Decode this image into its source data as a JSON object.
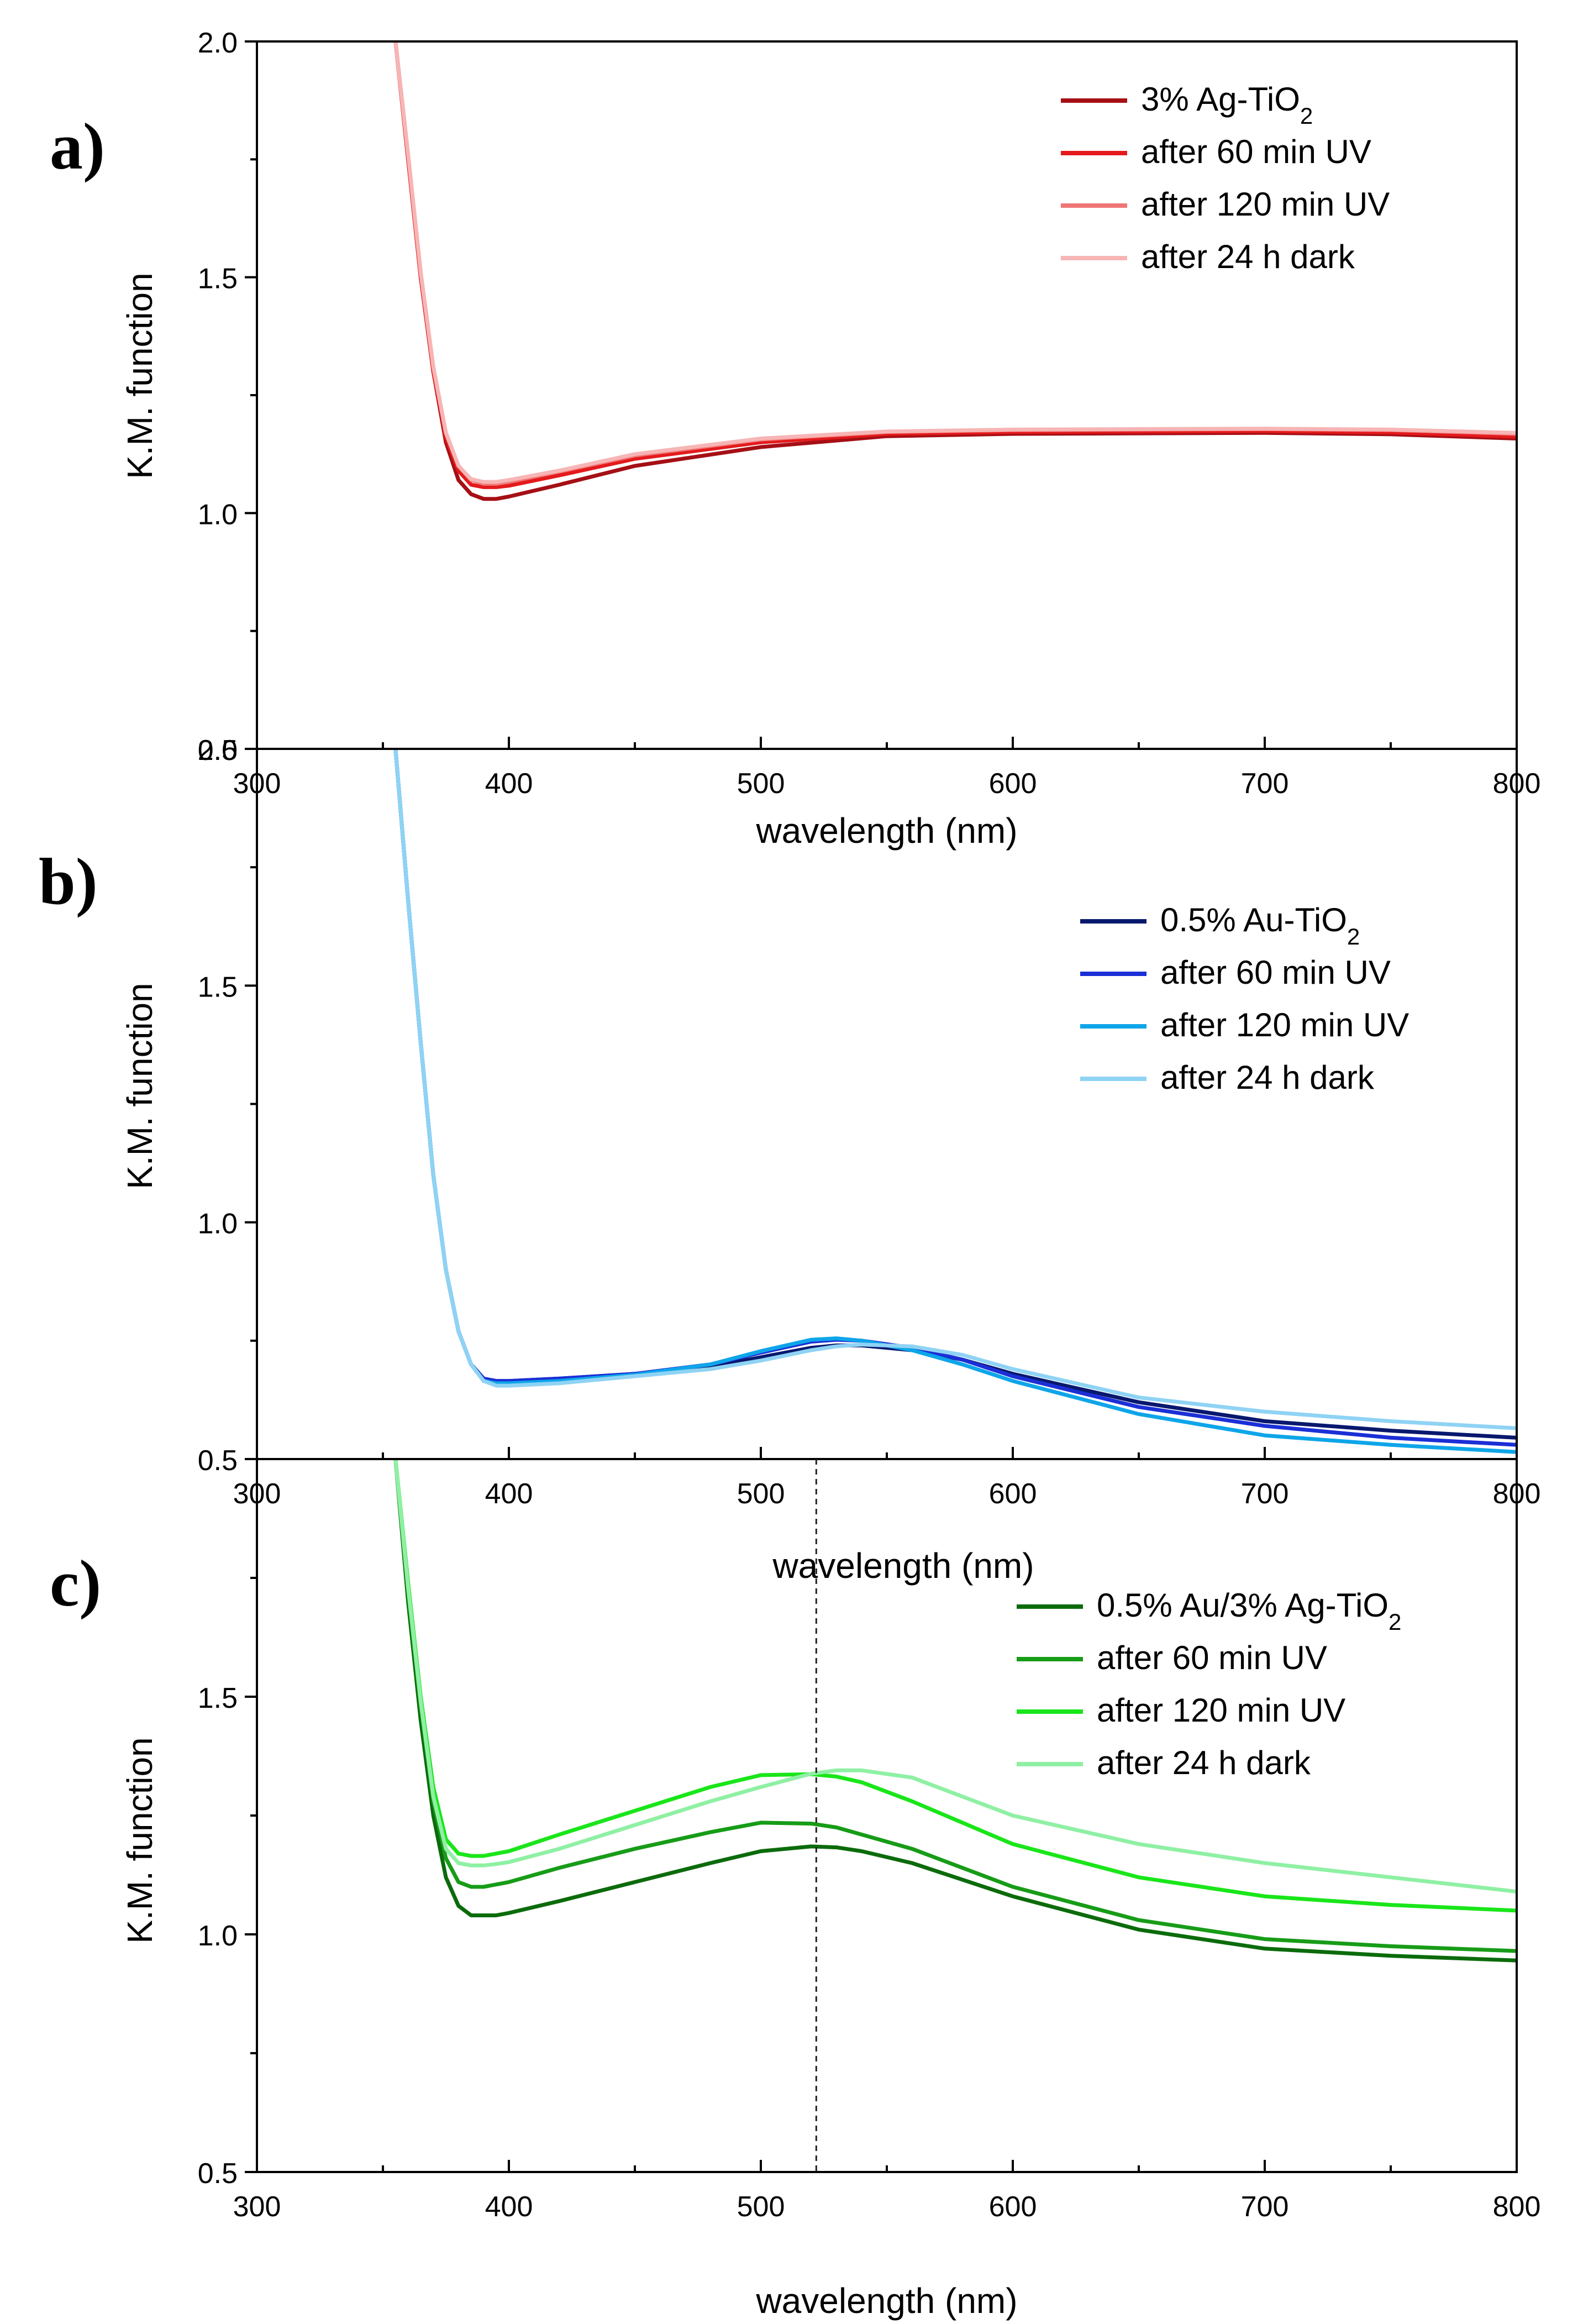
{
  "figure": {
    "shared": {
      "x_range": [
        300,
        800
      ],
      "x_ticks": [
        300,
        400,
        500,
        600,
        700,
        800
      ],
      "x_label": "wavelength (nm)",
      "y_label": "K.M. function"
    }
  },
  "chart_data": [
    {
      "id": "a",
      "panel_label": "a)",
      "type": "line",
      "xlabel": "wavelength (nm)",
      "ylabel": "K.M. function",
      "xlim": [
        300,
        800
      ],
      "ylim": [
        0.5,
        2.0
      ],
      "y_ticks": [
        "0.5",
        "1.0",
        "1.5",
        "2.0"
      ],
      "y_tick_values": [
        0.5,
        1.0,
        1.5,
        2.0
      ],
      "x_tick_labels": [
        "300",
        "400",
        "500",
        "600",
        "700",
        "800"
      ],
      "legend_position": "top-right",
      "series": [
        {
          "name": "3% Ag-TiO",
          "sub": "2",
          "color": "#a50f15",
          "x": [
            355,
            360,
            365,
            370,
            375,
            380,
            385,
            390,
            395,
            400,
            420,
            450,
            500,
            550,
            600,
            650,
            700,
            750,
            800
          ],
          "y": [
            2.0,
            1.75,
            1.5,
            1.3,
            1.15,
            1.07,
            1.04,
            1.03,
            1.03,
            1.035,
            1.06,
            1.1,
            1.14,
            1.163,
            1.168,
            1.169,
            1.17,
            1.167,
            1.158
          ]
        },
        {
          "name": "after 60 min UV",
          "sub": "",
          "color": "#e41a1c",
          "x": [
            355,
            360,
            365,
            370,
            375,
            380,
            385,
            390,
            395,
            400,
            420,
            450,
            500,
            550,
            600,
            650,
            700,
            750,
            800
          ],
          "y": [
            2.0,
            1.75,
            1.5,
            1.3,
            1.16,
            1.09,
            1.06,
            1.055,
            1.055,
            1.058,
            1.08,
            1.115,
            1.15,
            1.168,
            1.172,
            1.173,
            1.174,
            1.171,
            1.162
          ]
        },
        {
          "name": "after 120 min UV",
          "sub": "",
          "color": "#f07575",
          "x": [
            355,
            360,
            365,
            370,
            375,
            380,
            385,
            390,
            395,
            400,
            420,
            450,
            500,
            550,
            600,
            650,
            700,
            750,
            800
          ],
          "y": [
            2.0,
            1.76,
            1.51,
            1.31,
            1.17,
            1.1,
            1.07,
            1.062,
            1.062,
            1.066,
            1.088,
            1.122,
            1.156,
            1.172,
            1.176,
            1.177,
            1.178,
            1.176,
            1.168
          ]
        },
        {
          "name": "after 24 h dark",
          "sub": "",
          "color": "#f7b5b5",
          "x": [
            355,
            360,
            365,
            370,
            375,
            380,
            385,
            390,
            395,
            400,
            420,
            450,
            500,
            550,
            600,
            650,
            700,
            750,
            800
          ],
          "y": [
            2.0,
            1.76,
            1.51,
            1.31,
            1.17,
            1.1,
            1.072,
            1.066,
            1.066,
            1.07,
            1.09,
            1.125,
            1.158,
            1.173,
            1.177,
            1.178,
            1.179,
            1.177,
            1.17
          ]
        }
      ]
    },
    {
      "id": "b",
      "panel_label": "b)",
      "type": "line",
      "xlabel": "wavelength (nm)",
      "ylabel": "K.M. function",
      "xlim": [
        300,
        800
      ],
      "ylim": [
        0.5,
        2.0
      ],
      "y_ticks": [
        "0.5",
        "1.0",
        "1.5",
        "2.0"
      ],
      "y_tick_values": [
        0.5,
        1.0,
        1.5,
        2.0
      ],
      "x_tick_labels": [
        "300",
        "400",
        "500",
        "600",
        "700",
        "800"
      ],
      "legend_position": "top-right",
      "series": [
        {
          "name": "0.5% Au-TiO",
          "sub": "2",
          "color": "#08186e",
          "x": [
            355,
            360,
            365,
            370,
            375,
            380,
            385,
            390,
            395,
            400,
            420,
            450,
            480,
            500,
            520,
            530,
            540,
            560,
            580,
            600,
            650,
            700,
            750,
            800
          ],
          "y": [
            2.0,
            1.68,
            1.38,
            1.1,
            0.9,
            0.77,
            0.7,
            0.67,
            0.665,
            0.665,
            0.67,
            0.68,
            0.695,
            0.715,
            0.735,
            0.74,
            0.74,
            0.73,
            0.71,
            0.68,
            0.62,
            0.58,
            0.56,
            0.545
          ]
        },
        {
          "name": "after 60 min UV",
          "sub": "",
          "color": "#1b2fd6",
          "x": [
            355,
            360,
            365,
            370,
            375,
            380,
            385,
            390,
            395,
            400,
            420,
            450,
            480,
            500,
            520,
            530,
            540,
            560,
            580,
            600,
            650,
            700,
            750,
            800
          ],
          "y": [
            2.0,
            1.68,
            1.38,
            1.1,
            0.9,
            0.77,
            0.7,
            0.67,
            0.665,
            0.665,
            0.67,
            0.68,
            0.7,
            0.725,
            0.748,
            0.752,
            0.75,
            0.735,
            0.71,
            0.675,
            0.61,
            0.57,
            0.545,
            0.53
          ]
        },
        {
          "name": "after 120 min UV",
          "sub": "",
          "color": "#0ea5e9",
          "x": [
            355,
            360,
            365,
            370,
            375,
            380,
            385,
            390,
            395,
            400,
            420,
            450,
            480,
            500,
            520,
            530,
            540,
            560,
            580,
            600,
            650,
            700,
            750,
            800
          ],
          "y": [
            2.0,
            1.68,
            1.38,
            1.1,
            0.9,
            0.77,
            0.7,
            0.665,
            0.66,
            0.66,
            0.665,
            0.678,
            0.7,
            0.728,
            0.752,
            0.755,
            0.75,
            0.73,
            0.7,
            0.665,
            0.595,
            0.55,
            0.53,
            0.515
          ]
        },
        {
          "name": "after 24 h dark",
          "sub": "",
          "color": "#8fd3f4",
          "x": [
            355,
            360,
            365,
            370,
            375,
            380,
            385,
            390,
            395,
            400,
            420,
            450,
            480,
            500,
            520,
            530,
            540,
            560,
            580,
            600,
            650,
            700,
            750,
            800
          ],
          "y": [
            2.0,
            1.68,
            1.38,
            1.1,
            0.9,
            0.77,
            0.7,
            0.665,
            0.655,
            0.655,
            0.66,
            0.675,
            0.69,
            0.708,
            0.73,
            0.738,
            0.742,
            0.738,
            0.72,
            0.69,
            0.63,
            0.6,
            0.58,
            0.565
          ]
        }
      ]
    },
    {
      "id": "c",
      "panel_label": "c)",
      "type": "line",
      "xlabel": "wavelength (nm)",
      "ylabel": "K.M. function",
      "xlim": [
        300,
        800
      ],
      "ylim": [
        0.5,
        2.0
      ],
      "y_ticks": [
        "0.5",
        "1.0",
        "1.5"
      ],
      "y_tick_values": [
        0.5,
        1.0,
        1.5
      ],
      "x_tick_labels": [
        "300",
        "400",
        "500",
        "600",
        "700",
        "800"
      ],
      "legend_position": "top-right",
      "reference_line_x": 522,
      "series": [
        {
          "name": "0.5% Au/3% Ag-TiO",
          "sub": "2",
          "color": "#0b6b0b",
          "x": [
            355,
            360,
            365,
            370,
            375,
            380,
            385,
            390,
            395,
            400,
            420,
            450,
            480,
            500,
            520,
            530,
            540,
            560,
            580,
            600,
            650,
            700,
            750,
            800
          ],
          "y": [
            2.0,
            1.7,
            1.45,
            1.25,
            1.12,
            1.06,
            1.04,
            1.04,
            1.04,
            1.045,
            1.07,
            1.11,
            1.15,
            1.175,
            1.185,
            1.183,
            1.175,
            1.15,
            1.115,
            1.08,
            1.01,
            0.97,
            0.955,
            0.945
          ]
        },
        {
          "name": "after 60 min UV",
          "sub": "",
          "color": "#179c17",
          "x": [
            355,
            360,
            365,
            370,
            375,
            380,
            385,
            390,
            395,
            400,
            420,
            450,
            480,
            500,
            520,
            530,
            540,
            560,
            580,
            600,
            650,
            700,
            750,
            800
          ],
          "y": [
            2.0,
            1.72,
            1.48,
            1.28,
            1.16,
            1.11,
            1.1,
            1.1,
            1.105,
            1.11,
            1.14,
            1.18,
            1.215,
            1.235,
            1.233,
            1.225,
            1.21,
            1.18,
            1.14,
            1.1,
            1.03,
            0.99,
            0.975,
            0.965
          ]
        },
        {
          "name": "after 120 min UV",
          "sub": "",
          "color": "#19e619",
          "x": [
            355,
            360,
            365,
            370,
            375,
            380,
            385,
            390,
            395,
            400,
            420,
            450,
            480,
            500,
            520,
            530,
            540,
            560,
            580,
            600,
            650,
            700,
            750,
            800
          ],
          "y": [
            2.0,
            1.74,
            1.5,
            1.31,
            1.2,
            1.17,
            1.165,
            1.165,
            1.17,
            1.175,
            1.21,
            1.26,
            1.31,
            1.335,
            1.337,
            1.332,
            1.32,
            1.28,
            1.235,
            1.19,
            1.12,
            1.08,
            1.062,
            1.05
          ]
        },
        {
          "name": "after 24 h dark",
          "sub": "",
          "color": "#8ff0a4",
          "x": [
            355,
            360,
            365,
            370,
            375,
            380,
            385,
            390,
            395,
            400,
            420,
            450,
            480,
            500,
            520,
            530,
            540,
            560,
            580,
            600,
            650,
            700,
            750,
            800
          ],
          "y": [
            2.0,
            1.73,
            1.49,
            1.29,
            1.18,
            1.15,
            1.145,
            1.145,
            1.148,
            1.152,
            1.18,
            1.23,
            1.28,
            1.31,
            1.338,
            1.345,
            1.345,
            1.33,
            1.29,
            1.25,
            1.19,
            1.15,
            1.12,
            1.09
          ]
        }
      ]
    }
  ]
}
